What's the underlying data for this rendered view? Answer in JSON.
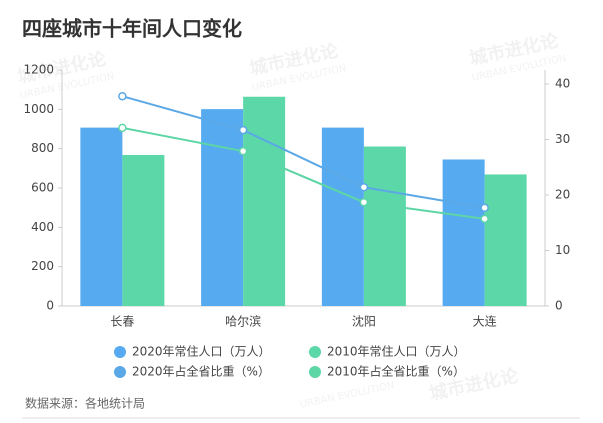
{
  "chart_data": {
    "type": "bar",
    "title": "四座城市十年间人口变化",
    "source": "数据来源：各地统计局",
    "watermark": [
      "城市进化论",
      "URBAN EVOLUTION"
    ],
    "categories": [
      "长春",
      "哈尔滨",
      "沈阳",
      "大连"
    ],
    "series": [
      {
        "name": "2020年常住人口（万人）",
        "color": "#56aaf0",
        "type": "bar",
        "values": [
          907,
          1001,
          907,
          745
        ]
      },
      {
        "name": "2010年常住人口（万人）",
        "color": "#5cd8a8",
        "type": "bar",
        "values": [
          768,
          1064,
          811,
          669
        ]
      },
      {
        "name": "2020年占全省比重（%）",
        "color": "#5ba8e6",
        "type": "line",
        "axis": "y2",
        "values": [
          37.8,
          31.7,
          21.4,
          17.7
        ]
      },
      {
        "name": "2010年占全省比重（%）",
        "color": "#5dd6a6",
        "type": "line",
        "axis": "y2",
        "values": [
          32.1,
          27.9,
          18.7,
          15.7
        ]
      }
    ],
    "ylim": [
      0,
      1200
    ],
    "yticks": [
      0,
      200,
      400,
      600,
      800,
      1000,
      1200
    ],
    "y2lim": [
      0,
      40
    ],
    "y2ticks": [
      0,
      10,
      20,
      30,
      40
    ],
    "grid": false
  }
}
